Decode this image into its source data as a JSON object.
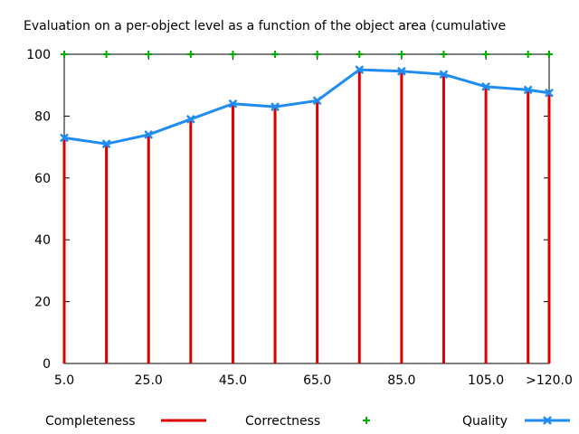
{
  "chart_data": {
    "type": "line",
    "title": "Evaluation on a per-object level as a function of the object area (cumulative",
    "xlabel": "",
    "ylabel": "",
    "x": [
      5.0,
      15.0,
      25.0,
      35.0,
      45.0,
      55.0,
      65.0,
      75.0,
      85.0,
      95.0,
      105.0,
      115.0,
      120.0
    ],
    "xlim": [
      5.0,
      120.0
    ],
    "ylim": [
      0,
      100
    ],
    "x_tick_values": [
      5.0,
      25.0,
      45.0,
      65.0,
      85.0,
      105.0,
      120.0
    ],
    "x_tick_labels": [
      "5.0",
      "25.0",
      "45.0",
      "65.0",
      "85.0",
      "105.0",
      ">120.0"
    ],
    "y_tick_values": [
      0,
      20,
      40,
      60,
      80,
      100
    ],
    "y_tick_labels": [
      "0",
      "20",
      "40",
      "60",
      "80",
      "100"
    ],
    "legend_position": "bottom",
    "series": [
      {
        "name": "Completeness",
        "style": "impulses",
        "color": "#dd0000",
        "values": [
          73,
          71,
          74,
          79,
          84,
          83,
          85,
          95,
          94.5,
          93.5,
          89.5,
          88.5,
          87.5
        ]
      },
      {
        "name": "Correctness",
        "style": "points",
        "color": "#00aa00",
        "values": [
          100,
          100,
          100,
          100,
          100,
          100,
          100,
          100,
          100,
          100,
          100,
          100,
          100
        ]
      },
      {
        "name": "Quality",
        "style": "linespoints",
        "color": "#1e8cf0",
        "values": [
          73,
          71,
          74,
          79,
          84,
          83,
          85,
          95,
          94.5,
          93.5,
          89.5,
          88.5,
          87.5
        ]
      }
    ]
  }
}
